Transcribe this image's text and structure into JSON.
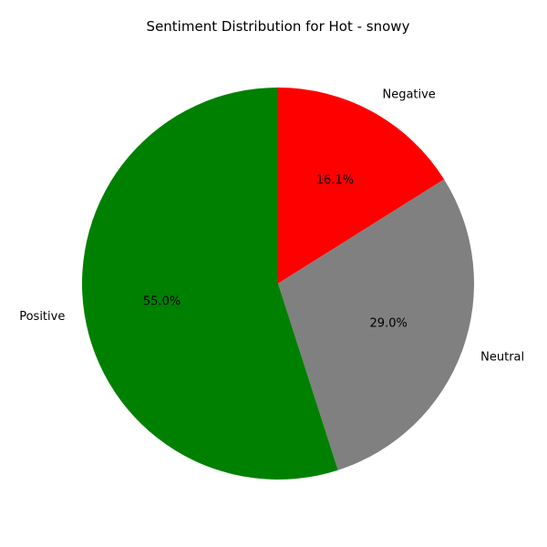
{
  "chart_data": {
    "type": "pie",
    "title": "Sentiment Distribution for Hot - snowy",
    "start_angle_deg": 90,
    "direction": "clockwise",
    "slices": [
      {
        "label": "Negative",
        "value": 16.1,
        "pct_label": "16.1%",
        "color": "#ff0000"
      },
      {
        "label": "Neutral",
        "value": 29.0,
        "pct_label": "29.0%",
        "color": "#808080"
      },
      {
        "label": "Positive",
        "value": 55.0,
        "pct_label": "55.0%",
        "color": "#008000"
      }
    ]
  }
}
